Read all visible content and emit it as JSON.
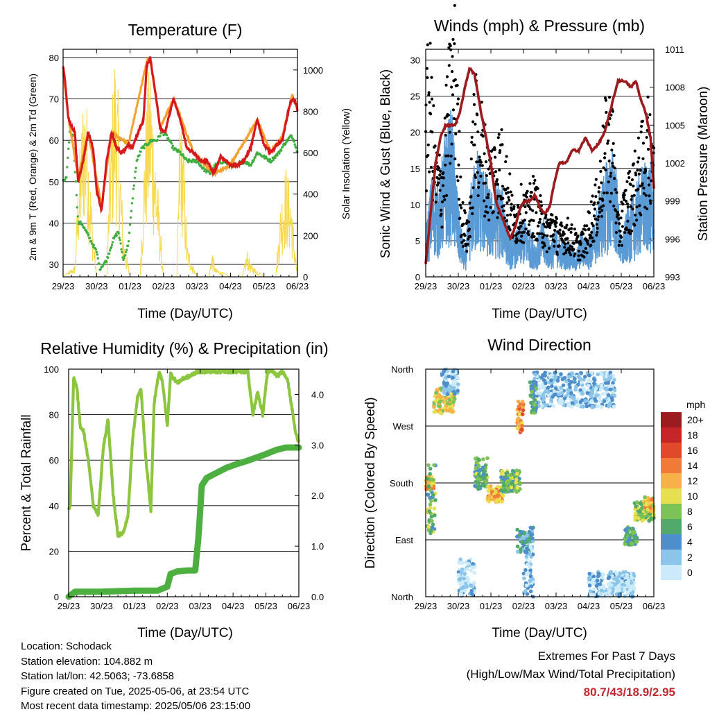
{
  "x_axis": {
    "label": "Time (Day/UTC)",
    "ticks": [
      "29/23",
      "30/23",
      "01/23",
      "02/23",
      "03/23",
      "04/23",
      "05/23",
      "06/23"
    ]
  },
  "panels": {
    "temperature": {
      "title": "Temperature (F)",
      "ylabel_left": "2m & 9m T (Red, Orange) & 2m Td (Green)",
      "ylabel_right": "Solar Insolation (Yellow)",
      "left_ticks": [
        "30",
        "40",
        "50",
        "60",
        "70",
        "80"
      ],
      "right_ticks": [
        "0",
        "200",
        "400",
        "600",
        "800",
        "1000"
      ]
    },
    "winds": {
      "title": "Winds (mph) & Pressure (mb)",
      "ylabel_left": "Sonic Wind & Gust (Blue, Black)",
      "ylabel_right": "Station Pressure (Maroon)",
      "left_ticks": [
        "0",
        "5",
        "10",
        "15",
        "20",
        "25",
        "30"
      ],
      "right_ticks": [
        "993",
        "996",
        "999",
        "1002",
        "1005",
        "1008",
        "1011"
      ]
    },
    "humidity": {
      "title": "Relative Humidity (%) & Precipitation (in)",
      "ylabel_left": "Percent & Total Rainfall",
      "left_ticks": [
        "0",
        "20",
        "40",
        "60",
        "80",
        "100"
      ],
      "right_ticks": [
        "0.0",
        "1.0",
        "2.0",
        "3.0",
        "4.0"
      ]
    },
    "direction": {
      "title": "Wind Direction",
      "ylabel_left": "Direction (Colored By Speed)",
      "left_ticks": [
        "North",
        "East",
        "South",
        "West",
        "North"
      ],
      "legend_title": "mph",
      "legend_labels": [
        "20+",
        "18",
        "16",
        "14",
        "12",
        "10",
        "8",
        "6",
        "4",
        "2",
        "0"
      ]
    }
  },
  "info": {
    "location": "Location: Schodack",
    "elevation": "Station elevation: 104.882 m",
    "latlon": "Station lat/lon: 42.5063; -73.6858",
    "created": "Figure created on Tue, 2025-05-06, at 23:54 UTC",
    "recent": "Most recent data timestamp: 2025/05/06 23:15:00"
  },
  "extremes": {
    "line1": "Extremes For Past 7 Days",
    "line2": "(High/Low/Max Wind/Total Precipitation)",
    "values": "80.7/43/18.9/2.95"
  },
  "colors": {
    "temp_2m": "#d7191c",
    "temp_9m": "#f4a02f",
    "dewpoint": "#3fae3f",
    "solar": "#f7d84a",
    "wind_speed": "#5b9bd5",
    "wind_gust": "#000000",
    "pressure": "#9b1b1e",
    "rh": "#8cc63f",
    "precip": "#4caf3f",
    "speed_scale": [
      "#ccebfa",
      "#8cc5ea",
      "#4e8fcb",
      "#51aa6c",
      "#7dc256",
      "#e6e04e",
      "#f8b048",
      "#f17a37",
      "#e04a2a",
      "#c6262a",
      "#9b1b1e"
    ]
  },
  "chart_data": [
    {
      "type": "line",
      "panel": "temperature",
      "title": "Temperature (F)",
      "xlabel": "Time (Day/UTC)",
      "ylabel": "2m & 9m T (Red, Orange) & 2m Td (Green)",
      "y2label": "Solar Insolation (Yellow)",
      "x_unit": "days since 29/23",
      "xlim": [
        0,
        7
      ],
      "ylim": [
        27,
        82
      ],
      "y2lim": [
        0,
        1100
      ],
      "series": [
        {
          "name": "2m T",
          "axis": "left",
          "x": [
            0,
            0.05,
            0.15,
            0.2,
            0.35,
            0.45,
            0.6,
            0.75,
            0.9,
            1.0,
            1.15,
            1.3,
            1.45,
            1.6,
            1.75,
            1.95,
            2.05,
            2.15,
            2.4,
            2.5,
            2.6,
            2.75,
            2.9,
            3.05,
            3.2,
            3.3,
            3.5,
            3.7,
            3.9,
            4.1,
            4.3,
            4.5,
            4.7,
            5.0,
            5.2,
            5.4,
            5.6,
            5.8,
            6.0,
            6.2,
            6.4,
            6.55,
            6.75,
            6.85,
            6.95,
            7.0
          ],
          "values": [
            78,
            75,
            66,
            64,
            62,
            50,
            55,
            62,
            58,
            48,
            43,
            55,
            62,
            58,
            57,
            59,
            58,
            60,
            65,
            78,
            80,
            72,
            63,
            62,
            67,
            70,
            65,
            58,
            57,
            55,
            55,
            52,
            56,
            54,
            54,
            55,
            58,
            65,
            59,
            57,
            59,
            60,
            68,
            70,
            69,
            67
          ]
        },
        {
          "name": "9m T",
          "axis": "left",
          "x": [
            0,
            0.15,
            0.45,
            0.75,
            1.15,
            1.45,
            1.95,
            2.5,
            2.6,
            2.9,
            3.3,
            3.9,
            4.5,
            5.0,
            5.8,
            6.2,
            6.55,
            6.85,
            7.0
          ],
          "values": [
            77,
            66,
            51,
            62,
            44,
            62,
            59,
            79,
            80,
            63,
            70,
            57,
            52,
            54,
            65,
            57,
            61,
            71,
            68
          ]
        },
        {
          "name": "2m Td",
          "axis": "left",
          "x": [
            0,
            0.1,
            0.2,
            0.3,
            0.45,
            0.55,
            0.75,
            1.0,
            1.1,
            1.3,
            1.5,
            1.65,
            1.8,
            1.95,
            2.1,
            2.2,
            2.35,
            2.5,
            2.65,
            2.8,
            2.95,
            3.1,
            3.3,
            3.5,
            3.7,
            4.0,
            4.2,
            4.4,
            4.55,
            4.8,
            5.0,
            5.2,
            5.4,
            5.6,
            5.8,
            6.0,
            6.2,
            6.45,
            6.6,
            6.8,
            6.9,
            7.0
          ],
          "values": [
            50,
            51,
            62,
            61,
            40,
            40,
            37,
            33,
            29,
            31,
            36,
            38,
            31,
            35,
            48,
            55,
            58,
            59,
            60,
            60,
            62,
            61,
            58,
            57,
            55,
            55,
            53,
            52,
            54,
            55,
            54,
            54,
            55,
            54,
            57,
            56,
            55,
            57,
            59,
            61,
            60,
            57
          ]
        },
        {
          "name": "Solar Insolation",
          "axis": "right",
          "x": [
            0,
            0.35,
            0.45,
            0.55,
            0.62,
            0.7,
            0.85,
            1.0,
            1.3,
            1.4,
            1.55,
            1.65,
            1.8,
            2.0,
            2.3,
            2.45,
            2.6,
            2.75,
            3.0,
            3.4,
            3.5,
            3.6,
            3.7,
            4.0,
            4.35,
            4.45,
            4.55,
            5.0,
            5.35,
            5.5,
            5.6,
            6.0,
            6.35,
            6.5,
            6.65,
            6.8,
            6.9,
            7.0
          ],
          "values": [
            0,
            50,
            450,
            700,
            900,
            800,
            350,
            0,
            0,
            600,
            1050,
            800,
            200,
            0,
            0,
            700,
            1000,
            600,
            0,
            0,
            850,
            600,
            150,
            0,
            0,
            120,
            40,
            0,
            0,
            120,
            60,
            0,
            0,
            350,
            500,
            400,
            200,
            0
          ]
        }
      ]
    },
    {
      "type": "line",
      "panel": "winds",
      "title": "Winds (mph) & Pressure (mb)",
      "xlabel": "Time (Day/UTC)",
      "ylabel": "Sonic Wind & Gust (Blue, Black)",
      "y2label": "Station Pressure (Maroon)",
      "x_unit": "days since 29/23",
      "xlim": [
        0,
        7
      ],
      "ylim": [
        0,
        31.5
      ],
      "y2lim": [
        993,
        1011
      ],
      "series": [
        {
          "name": "Sonic Wind",
          "axis": "left",
          "x": [
            0,
            0.2,
            0.4,
            0.6,
            0.8,
            1.0,
            1.2,
            1.4,
            1.6,
            1.8,
            2.0,
            2.2,
            2.4,
            2.6,
            2.8,
            3.0,
            3.2,
            3.4,
            3.6,
            3.8,
            4.0,
            4.2,
            4.4,
            4.6,
            4.8,
            5.0,
            5.2,
            5.4,
            5.6,
            5.8,
            6.0,
            6.2,
            6.4,
            6.6,
            6.8,
            7.0
          ],
          "values": [
            4,
            9,
            8,
            12,
            14,
            6,
            2,
            8,
            11,
            9,
            7,
            8,
            7,
            3,
            4,
            5,
            4,
            3,
            5,
            3,
            4,
            3,
            3,
            2,
            4,
            3,
            5,
            8,
            10,
            11,
            3,
            6,
            7,
            9,
            10,
            9
          ]
        },
        {
          "name": "Gust",
          "axis": "left",
          "x": [
            0,
            0.1,
            0.3,
            0.5,
            0.7,
            0.9,
            1.1,
            1.3,
            1.5,
            1.7,
            1.9,
            2.1,
            2.3,
            2.5,
            2.7,
            2.9,
            3.1,
            3.3,
            3.5,
            3.7,
            3.9,
            4.1,
            4.3,
            4.5,
            4.7,
            4.9,
            5.1,
            5.3,
            5.5,
            5.7,
            5.9,
            6.1,
            6.3,
            6.5,
            6.7,
            6.9
          ],
          "values": [
            18,
            25,
            13,
            12,
            22,
            27,
            8,
            5,
            20,
            18,
            13,
            14,
            15,
            12,
            7,
            9,
            8,
            10,
            8,
            6,
            7,
            5,
            6,
            5,
            4,
            5,
            8,
            10,
            17,
            19,
            6,
            9,
            11,
            13,
            16,
            18
          ]
        },
        {
          "name": "Station Pressure",
          "axis": "right",
          "x": [
            0,
            0.15,
            0.3,
            0.45,
            0.6,
            0.75,
            0.9,
            1.05,
            1.2,
            1.35,
            1.5,
            1.7,
            1.85,
            2.0,
            2.15,
            2.3,
            2.45,
            2.6,
            2.75,
            2.9,
            3.05,
            3.2,
            3.35,
            3.5,
            3.65,
            3.8,
            3.95,
            4.1,
            4.3,
            4.5,
            4.7,
            4.9,
            5.1,
            5.3,
            5.5,
            5.7,
            5.9,
            6.1,
            6.3,
            6.45,
            6.6,
            6.75,
            6.9,
            7.0
          ],
          "values": [
            994,
            998,
            1002,
            1004,
            1005,
            1005,
            1005,
            1006,
            1008,
            1009.5,
            1009,
            1006,
            1004,
            1002,
            999,
            998,
            997,
            996,
            997,
            998.5,
            999,
            999,
            999.5,
            998.5,
            998,
            998.5,
            1000.5,
            1002,
            1002,
            1003,
            1003,
            1004,
            1003,
            1003.5,
            1004.5,
            1006.5,
            1008.5,
            1008.5,
            1008,
            1008.5,
            1007,
            1006,
            1004,
            1000
          ]
        }
      ]
    },
    {
      "type": "line",
      "panel": "humidity",
      "title": "Relative Humidity (%) & Precipitation (in)",
      "xlabel": "Time (Day/UTC)",
      "ylabel": "Percent & Total Rainfall",
      "x_unit": "days since 29/23",
      "xlim": [
        0,
        7
      ],
      "ylim": [
        0,
        100
      ],
      "y2lim": [
        0,
        4.5
      ],
      "series": [
        {
          "name": "Relative Humidity",
          "axis": "left",
          "x": [
            0,
            0.05,
            0.15,
            0.25,
            0.35,
            0.45,
            0.6,
            0.75,
            0.9,
            1.05,
            1.2,
            1.35,
            1.5,
            1.65,
            1.8,
            1.95,
            2.1,
            2.2,
            2.35,
            2.5,
            2.6,
            2.75,
            2.85,
            3.0,
            3.1,
            3.3,
            3.5,
            3.7,
            3.9,
            4.1,
            4.3,
            4.5,
            4.7,
            4.85,
            5.0,
            5.15,
            5.3,
            5.45,
            5.6,
            5.75,
            5.9,
            6.05,
            6.2,
            6.35,
            6.5,
            6.65,
            6.8,
            6.9,
            7.0
          ],
          "values": [
            38,
            41,
            96,
            92,
            75,
            73,
            60,
            40,
            36,
            65,
            78,
            45,
            27,
            28,
            35,
            70,
            88,
            91,
            60,
            38,
            85,
            99,
            95,
            75,
            98,
            94,
            96,
            97,
            99,
            99,
            99,
            99,
            99,
            99,
            99,
            99,
            99,
            99,
            80,
            90,
            80,
            99,
            99,
            97,
            99,
            96,
            82,
            72,
            68
          ]
        },
        {
          "name": "Total Rainfall",
          "axis": "right",
          "x": [
            0,
            0.2,
            1.0,
            2.0,
            2.7,
            3.0,
            3.1,
            3.3,
            3.6,
            3.85,
            3.95,
            4.05,
            4.2,
            4.5,
            4.8,
            5.1,
            5.4,
            5.7,
            6.0,
            6.3,
            6.6,
            7.0
          ],
          "values": [
            0,
            0.1,
            0.1,
            0.12,
            0.12,
            0.2,
            0.45,
            0.5,
            0.52,
            0.52,
            1.2,
            2.2,
            2.35,
            2.45,
            2.55,
            2.62,
            2.68,
            2.75,
            2.82,
            2.9,
            2.95,
            2.95
          ]
        }
      ]
    },
    {
      "type": "scatter",
      "panel": "direction",
      "title": "Wind Direction",
      "xlabel": "Time (Day/UTC)",
      "ylabel": "Direction (Colored By Speed)",
      "x_unit": "days since 29/23",
      "xlim": [
        0,
        7
      ],
      "ylim": [
        0,
        360
      ],
      "y_ticks": {
        "North": 0,
        "East": 90,
        "South": 180,
        "West": 270,
        "North ": 360
      },
      "clusters": [
        {
          "x_start": 0.0,
          "x_end": 0.25,
          "dir_low": 170,
          "dir_high": 190,
          "speed": 12
        },
        {
          "x_start": 0.05,
          "x_end": 0.3,
          "dir_low": 100,
          "dir_high": 210,
          "speed": 7
        },
        {
          "x_start": 0.25,
          "x_end": 0.9,
          "dir_low": 290,
          "dir_high": 330,
          "speed": 10
        },
        {
          "x_start": 0.5,
          "x_end": 1.0,
          "dir_low": 320,
          "dir_high": 360,
          "speed": 2
        },
        {
          "x_start": 1.0,
          "x_end": 1.5,
          "dir_low": 0,
          "dir_high": 60,
          "speed": 1
        },
        {
          "x_start": 1.5,
          "x_end": 1.9,
          "dir_low": 170,
          "dir_high": 220,
          "speed": 7
        },
        {
          "x_start": 1.9,
          "x_end": 2.4,
          "dir_low": 150,
          "dir_high": 175,
          "speed": 12
        },
        {
          "x_start": 2.3,
          "x_end": 2.9,
          "dir_low": 165,
          "dir_high": 200,
          "speed": 7
        },
        {
          "x_start": 2.8,
          "x_end": 3.0,
          "dir_low": 260,
          "dir_high": 310,
          "speed": 13
        },
        {
          "x_start": 2.8,
          "x_end": 3.3,
          "dir_low": 70,
          "dir_high": 110,
          "speed": 4
        },
        {
          "x_start": 3.0,
          "x_end": 3.3,
          "dir_low": 0,
          "dir_high": 80,
          "speed": 2
        },
        {
          "x_start": 3.3,
          "x_end": 5.8,
          "dir_low": 300,
          "dir_high": 355,
          "speed": 2
        },
        {
          "x_start": 3.2,
          "x_end": 3.4,
          "dir_low": 290,
          "dir_high": 340,
          "speed": 6
        },
        {
          "x_start": 5.0,
          "x_end": 6.4,
          "dir_low": 0,
          "dir_high": 40,
          "speed": 1
        },
        {
          "x_start": 6.1,
          "x_end": 6.5,
          "dir_low": 80,
          "dir_high": 110,
          "speed": 6
        },
        {
          "x_start": 6.4,
          "x_end": 7.0,
          "dir_low": 120,
          "dir_high": 150,
          "speed": 8
        },
        {
          "x_start": 6.7,
          "x_end": 7.0,
          "dir_low": 135,
          "dir_high": 160,
          "speed": 11
        }
      ]
    }
  ]
}
